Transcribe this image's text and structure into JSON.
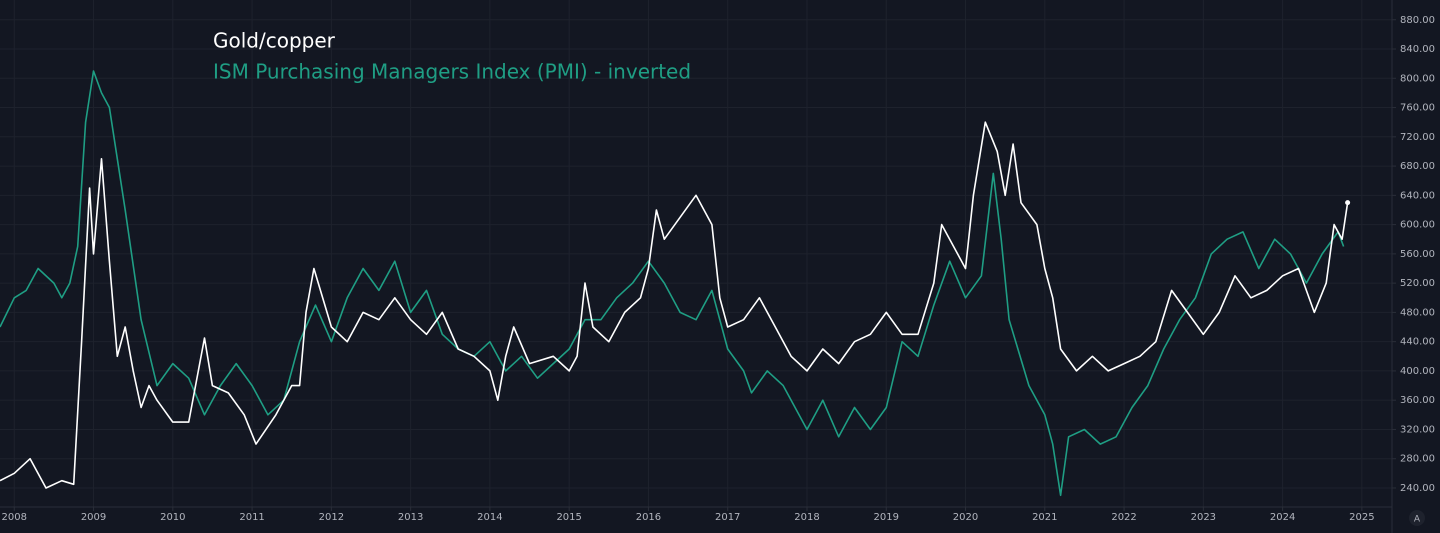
{
  "chart_data": {
    "type": "line",
    "grid": true,
    "legend": "top-left",
    "xlim": [
      2007.82,
      2025.38
    ],
    "xticks": [
      2008,
      2009,
      2010,
      2011,
      2012,
      2013,
      2014,
      2015,
      2016,
      2017,
      2018,
      2019,
      2020,
      2021,
      2022,
      2023,
      2024,
      2025
    ],
    "ylim": [
      214,
      907
    ],
    "yticks": [
      {
        "value": 240,
        "label": "240.00"
      },
      {
        "value": 280,
        "label": "280.00"
      },
      {
        "value": 320,
        "label": "320.00"
      },
      {
        "value": 360,
        "label": "360.00"
      },
      {
        "value": 400,
        "label": "400.00"
      },
      {
        "value": 440,
        "label": "440.00"
      },
      {
        "value": 480,
        "label": "480.00"
      },
      {
        "value": 520,
        "label": "520.00"
      },
      {
        "value": 560,
        "label": "560.00"
      },
      {
        "value": 600,
        "label": "600.00"
      },
      {
        "value": 640,
        "label": "640.00"
      },
      {
        "value": 680,
        "label": "680.00"
      },
      {
        "value": 720,
        "label": "720.00"
      },
      {
        "value": 760,
        "label": "760.00"
      },
      {
        "value": 800,
        "label": "800.00"
      },
      {
        "value": 840,
        "label": "840.00"
      },
      {
        "value": 880,
        "label": "880.00"
      }
    ],
    "series": [
      {
        "name": "Gold/copper",
        "color": "#ffffff",
        "x": [
          2007.82,
          2008.0,
          2008.2,
          2008.4,
          2008.6,
          2008.75,
          2008.85,
          2008.95,
          2009.0,
          2009.1,
          2009.2,
          2009.3,
          2009.4,
          2009.5,
          2009.6,
          2009.7,
          2009.8,
          2010.0,
          2010.2,
          2010.4,
          2010.5,
          2010.7,
          2010.9,
          2011.05,
          2011.3,
          2011.5,
          2011.6,
          2011.68,
          2011.78,
          2012.0,
          2012.2,
          2012.4,
          2012.6,
          2012.8,
          2013.0,
          2013.2,
          2013.4,
          2013.6,
          2013.8,
          2014.0,
          2014.1,
          2014.2,
          2014.3,
          2014.5,
          2014.8,
          2015.0,
          2015.1,
          2015.2,
          2015.3,
          2015.5,
          2015.7,
          2015.9,
          2016.0,
          2016.1,
          2016.2,
          2016.4,
          2016.6,
          2016.8,
          2016.9,
          2017.0,
          2017.2,
          2017.4,
          2017.6,
          2017.8,
          2018.0,
          2018.2,
          2018.4,
          2018.6,
          2018.8,
          2019.0,
          2019.2,
          2019.4,
          2019.6,
          2019.7,
          2019.9,
          2020.0,
          2020.1,
          2020.25,
          2020.4,
          2020.5,
          2020.6,
          2020.7,
          2020.9,
          2021.0,
          2021.1,
          2021.2,
          2021.4,
          2021.6,
          2021.8,
          2022.0,
          2022.2,
          2022.4,
          2022.6,
          2022.8,
          2023.0,
          2023.2,
          2023.4,
          2023.6,
          2023.8,
          2024.0,
          2024.2,
          2024.4,
          2024.55,
          2024.65,
          2024.75,
          2024.82
        ],
        "values": [
          250,
          260,
          280,
          240,
          250,
          245,
          440,
          650,
          560,
          690,
          550,
          420,
          460,
          400,
          350,
          380,
          360,
          330,
          330,
          445,
          380,
          370,
          340,
          300,
          340,
          380,
          380,
          480,
          540,
          460,
          440,
          480,
          470,
          500,
          470,
          450,
          480,
          430,
          420,
          400,
          360,
          420,
          460,
          410,
          420,
          400,
          420,
          520,
          460,
          440,
          480,
          500,
          540,
          620,
          580,
          610,
          640,
          600,
          500,
          460,
          470,
          500,
          460,
          420,
          400,
          430,
          410,
          440,
          450,
          480,
          450,
          450,
          520,
          600,
          560,
          540,
          640,
          740,
          700,
          640,
          710,
          630,
          600,
          540,
          500,
          430,
          400,
          420,
          400,
          410,
          420,
          440,
          510,
          480,
          450,
          480,
          530,
          500,
          510,
          530,
          540,
          480,
          520,
          600,
          580,
          630
        ]
      },
      {
        "name": "ISM Purchasing Managers Index (PMI) - inverted",
        "color": "#1f9e84",
        "x": [
          2007.82,
          2008.0,
          2008.15,
          2008.3,
          2008.5,
          2008.6,
          2008.7,
          2008.8,
          2008.9,
          2009.0,
          2009.1,
          2009.2,
          2009.4,
          2009.6,
          2009.8,
          2010.0,
          2010.2,
          2010.4,
          2010.6,
          2010.8,
          2011.0,
          2011.2,
          2011.4,
          2011.6,
          2011.8,
          2012.0,
          2012.2,
          2012.4,
          2012.6,
          2012.8,
          2013.0,
          2013.2,
          2013.4,
          2013.6,
          2013.8,
          2014.0,
          2014.2,
          2014.4,
          2014.6,
          2014.8,
          2015.0,
          2015.2,
          2015.4,
          2015.6,
          2015.8,
          2016.0,
          2016.2,
          2016.4,
          2016.6,
          2016.8,
          2017.0,
          2017.2,
          2017.3,
          2017.5,
          2017.7,
          2018.0,
          2018.2,
          2018.4,
          2018.6,
          2018.8,
          2019.0,
          2019.2,
          2019.4,
          2019.6,
          2019.8,
          2020.0,
          2020.2,
          2020.35,
          2020.45,
          2020.55,
          2020.8,
          2021.0,
          2021.1,
          2021.2,
          2021.3,
          2021.5,
          2021.7,
          2021.9,
          2022.1,
          2022.3,
          2022.5,
          2022.7,
          2022.9,
          2023.1,
          2023.3,
          2023.5,
          2023.7,
          2023.9,
          2024.1,
          2024.3,
          2024.5,
          2024.7,
          2024.77
        ],
        "values": [
          460,
          500,
          510,
          540,
          520,
          500,
          520,
          570,
          740,
          810,
          780,
          760,
          620,
          470,
          380,
          410,
          390,
          340,
          380,
          410,
          380,
          340,
          360,
          440,
          490,
          440,
          500,
          540,
          510,
          550,
          480,
          510,
          450,
          430,
          420,
          440,
          400,
          420,
          390,
          410,
          430,
          470,
          470,
          500,
          520,
          550,
          520,
          480,
          470,
          510,
          430,
          400,
          370,
          400,
          380,
          320,
          360,
          310,
          350,
          320,
          350,
          440,
          420,
          490,
          550,
          500,
          530,
          670,
          580,
          470,
          380,
          340,
          300,
          230,
          310,
          320,
          300,
          310,
          350,
          380,
          430,
          470,
          500,
          560,
          580,
          590,
          540,
          580,
          560,
          520,
          560,
          590,
          570
        ]
      }
    ]
  },
  "autoscale_label": "A"
}
